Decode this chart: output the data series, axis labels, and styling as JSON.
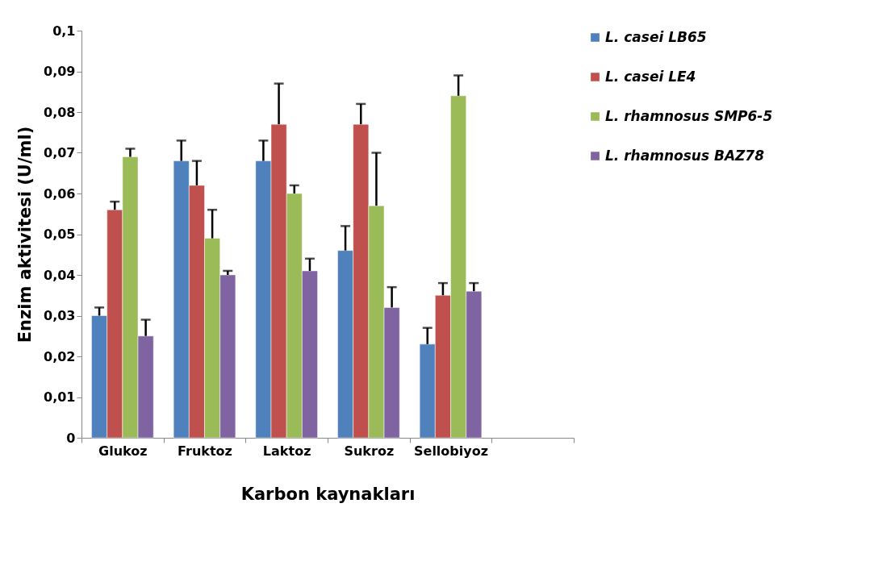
{
  "chart_data": {
    "type": "bar",
    "xlabel": "Karbon kaynakları",
    "ylabel": "Enzim aktivitesi (U/ml)",
    "categories": [
      "Glukoz",
      "Fruktoz",
      "Laktoz",
      "Sukroz",
      "Sellobiyoz",
      null
    ],
    "series": [
      {
        "name": "L. casei LB65",
        "color": "#4f81bd",
        "values": [
          0.03,
          0.068,
          0.068,
          0.046,
          0.023,
          null
        ],
        "errors": [
          [
            0.03,
            0.032
          ],
          [
            0.068,
            0.073
          ],
          [
            0.068,
            0.073
          ],
          [
            0.046,
            0.052
          ],
          [
            0.023,
            0.027
          ],
          null
        ]
      },
      {
        "name": "L. casei LE4",
        "color": "#c0504d",
        "values": [
          0.056,
          0.062,
          0.077,
          0.077,
          0.035,
          null
        ],
        "errors": [
          [
            0.056,
            0.058
          ],
          [
            0.062,
            0.068
          ],
          [
            0.077,
            0.087
          ],
          [
            0.077,
            0.082
          ],
          [
            0.035,
            0.038
          ],
          null
        ]
      },
      {
        "name": "L. rhamnosus SMP6-5",
        "color": "#9bbb59",
        "values": [
          0.069,
          0.049,
          0.06,
          0.057,
          0.084,
          null
        ],
        "errors": [
          [
            0.069,
            0.071
          ],
          [
            0.049,
            0.056
          ],
          [
            0.06,
            0.062
          ],
          [
            0.057,
            0.07
          ],
          [
            0.084,
            0.089
          ],
          null
        ]
      },
      {
        "name": "L. rhamnosus BAZ78",
        "color": "#8064a2",
        "values": [
          0.025,
          0.04,
          0.041,
          0.032,
          0.036,
          null
        ],
        "errors": [
          [
            0.025,
            0.029
          ],
          [
            0.04,
            0.041
          ],
          [
            0.041,
            0.044
          ],
          [
            0.032,
            0.037
          ],
          [
            0.036,
            0.038
          ],
          null
        ]
      }
    ],
    "ylim": [
      0,
      0.1
    ],
    "yticks": [
      0,
      {
        "value": 0.01,
        "label": "0,01"
      },
      {
        "value": 0.02,
        "label": "0,02"
      },
      {
        "value": 0.03,
        "label": "0,03"
      },
      {
        "value": 0.04,
        "label": "0,04"
      },
      {
        "value": 0.05,
        "label": "0,05"
      },
      {
        "value": 0.06,
        "label": "0,06"
      },
      {
        "value": 0.07,
        "label": "0,07"
      },
      {
        "value": 0.08,
        "label": "0,08"
      },
      {
        "value": 0.09,
        "label": "0,09"
      },
      {
        "value": 0.1,
        "label": "0,1"
      }
    ],
    "grid": false,
    "legend": "right"
  }
}
